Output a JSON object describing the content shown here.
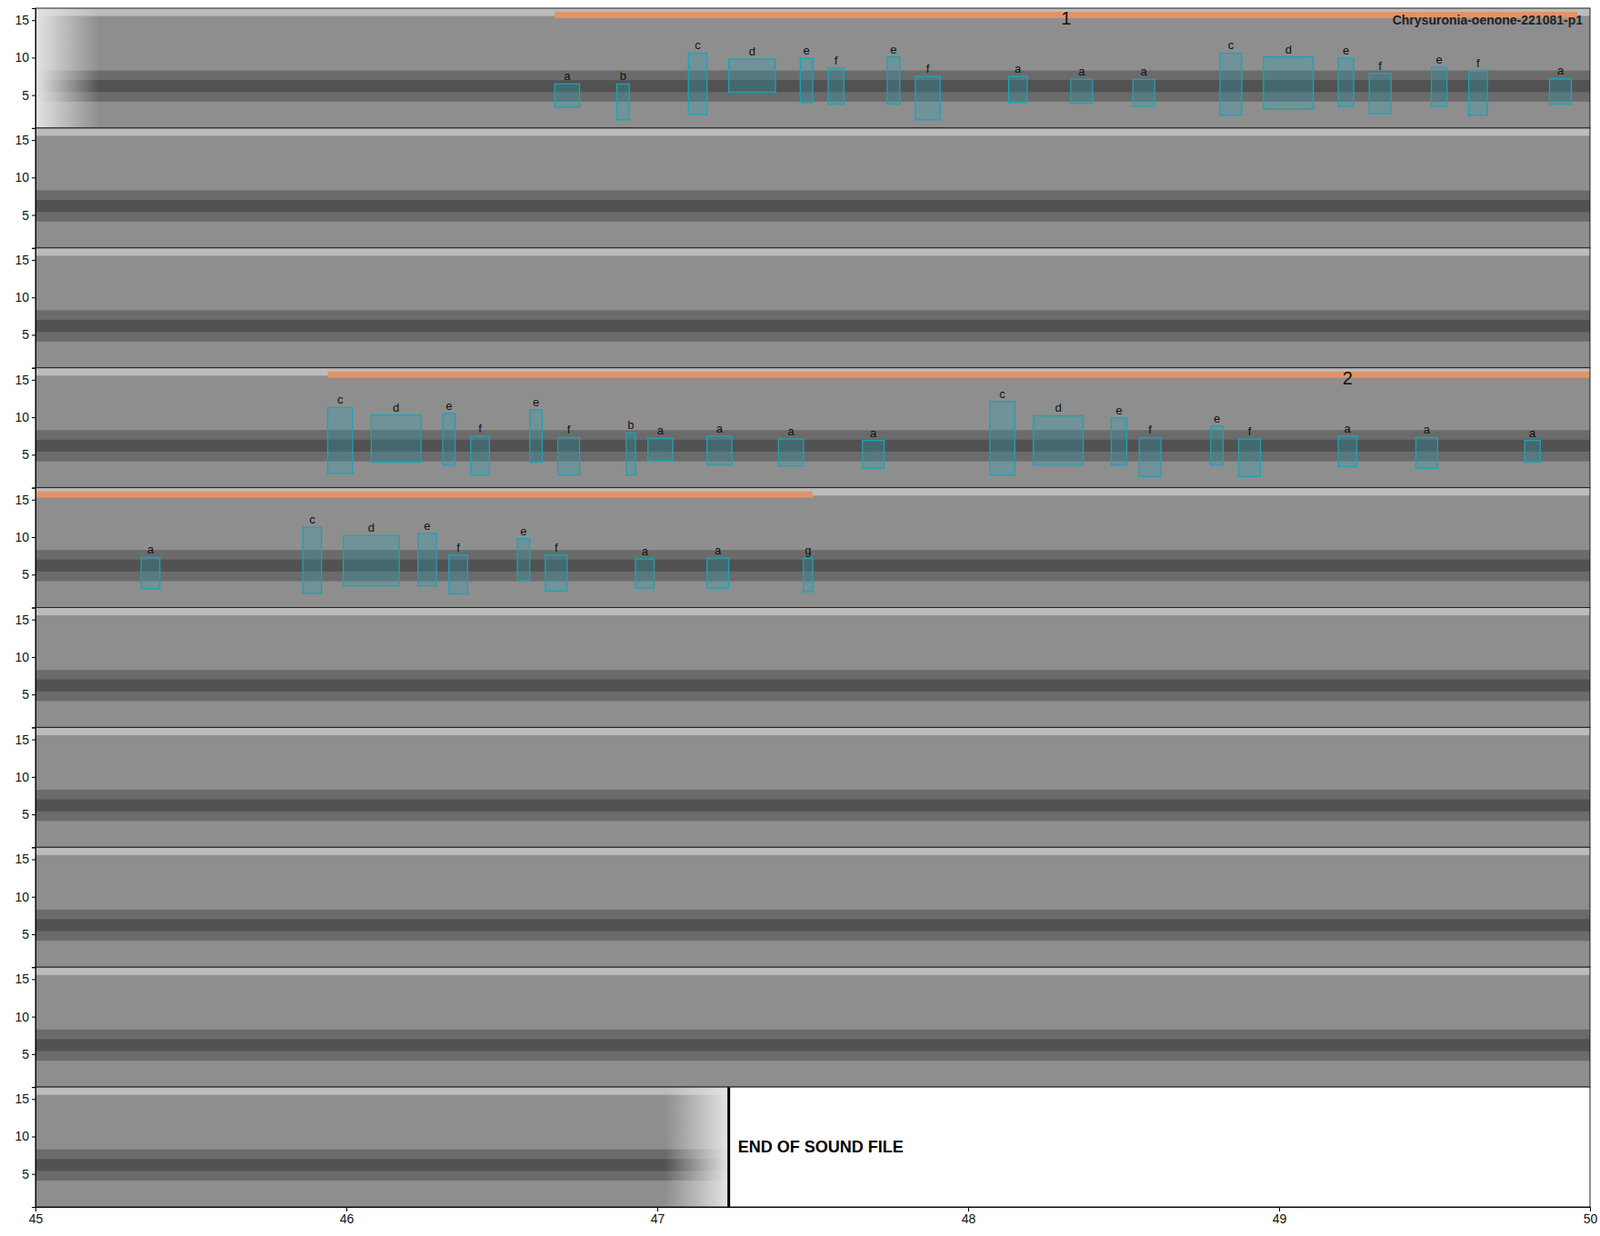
{
  "chart_data": {
    "type": "spectrogram",
    "title": "Chrysuronia-oenone-221081-p1",
    "color": "#1fa2b4",
    "ylim": [
      0.6,
      16.6
    ],
    "yticks": [
      5,
      10,
      15
    ],
    "rows": [
      {
        "xlim": [
          0,
          5
        ]
      },
      {
        "xlim": [
          5,
          10
        ]
      },
      {
        "xlim": [
          10,
          15
        ]
      },
      {
        "xlim": [
          15,
          20
        ]
      },
      {
        "xlim": [
          20,
          25
        ]
      },
      {
        "xlim": [
          25,
          30
        ]
      },
      {
        "xlim": [
          30,
          35
        ]
      },
      {
        "xlim": [
          35,
          40
        ]
      },
      {
        "xlim": [
          40,
          45
        ]
      },
      {
        "xlim": [
          45,
          50
        ],
        "xticks": [
          45,
          46,
          47,
          48,
          49,
          50
        ]
      }
    ],
    "songs": [
      {
        "label": "1",
        "start": 1.67,
        "end": 4.96
      },
      {
        "label": "2",
        "start": 15.94,
        "end": 22.5
      }
    ],
    "syllables": [
      {
        "label": "a",
        "t": [
          1.67,
          1.75
        ],
        "f": [
          3.4,
          6.5
        ]
      },
      {
        "label": "b",
        "t": [
          1.87,
          1.91
        ],
        "f": [
          1.7,
          6.5
        ]
      },
      {
        "label": "c",
        "t": [
          2.1,
          2.16
        ],
        "f": [
          2.4,
          10.6
        ]
      },
      {
        "label": "d",
        "t": [
          2.23,
          2.38
        ],
        "f": [
          5.4,
          9.8
        ]
      },
      {
        "label": "e",
        "t": [
          2.46,
          2.5
        ],
        "f": [
          4.0,
          9.9
        ]
      },
      {
        "label": "f",
        "t": [
          2.55,
          2.6
        ],
        "f": [
          3.8,
          8.6
        ]
      },
      {
        "label": "e",
        "t": [
          2.74,
          2.78
        ],
        "f": [
          3.8,
          10.1
        ]
      },
      {
        "label": "f",
        "t": [
          2.83,
          2.91
        ],
        "f": [
          1.7,
          7.5
        ]
      },
      {
        "label": "a",
        "t": [
          3.13,
          3.19
        ],
        "f": [
          4.0,
          7.5
        ]
      },
      {
        "label": "a",
        "t": [
          3.33,
          3.4
        ],
        "f": [
          3.9,
          7.1
        ]
      },
      {
        "label": "a",
        "t": [
          3.53,
          3.6
        ],
        "f": [
          3.5,
          7.1
        ]
      },
      {
        "label": "c",
        "t": [
          3.81,
          3.88
        ],
        "f": [
          2.3,
          10.6
        ]
      },
      {
        "label": "d",
        "t": [
          3.95,
          4.11
        ],
        "f": [
          3.1,
          10.1
        ]
      },
      {
        "label": "e",
        "t": [
          4.19,
          4.24
        ],
        "f": [
          3.5,
          9.9
        ]
      },
      {
        "label": "f",
        "t": [
          4.29,
          4.36
        ],
        "f": [
          2.5,
          7.9
        ]
      },
      {
        "label": "e",
        "t": [
          4.49,
          4.54
        ],
        "f": [
          3.5,
          8.7
        ]
      },
      {
        "label": "f",
        "t": [
          4.61,
          4.67
        ],
        "f": [
          2.3,
          8.2
        ]
      },
      {
        "label": "a",
        "t": [
          4.87,
          4.94
        ],
        "f": [
          3.8,
          7.2
        ]
      },
      {
        "label": "c",
        "t": [
          15.94,
          16.02
        ],
        "f": [
          2.5,
          11.3
        ]
      },
      {
        "label": "d",
        "t": [
          16.08,
          16.24
        ],
        "f": [
          4.0,
          10.3
        ]
      },
      {
        "label": "e",
        "t": [
          16.31,
          16.35
        ],
        "f": [
          3.6,
          10.5
        ]
      },
      {
        "label": "f",
        "t": [
          16.4,
          16.46
        ],
        "f": [
          2.3,
          7.5
        ]
      },
      {
        "label": "e",
        "t": [
          16.59,
          16.63
        ],
        "f": [
          4.0,
          11.0
        ]
      },
      {
        "label": "f",
        "t": [
          16.68,
          16.75
        ],
        "f": [
          2.3,
          7.3
        ]
      },
      {
        "label": "b",
        "t": [
          16.9,
          16.93
        ],
        "f": [
          2.3,
          7.9
        ]
      },
      {
        "label": "a",
        "t": [
          16.97,
          17.05
        ],
        "f": [
          4.2,
          7.2
        ]
      },
      {
        "label": "a",
        "t": [
          17.16,
          17.24
        ],
        "f": [
          3.6,
          7.5
        ]
      },
      {
        "label": "a",
        "t": [
          17.39,
          17.47
        ],
        "f": [
          3.5,
          7.1
        ]
      },
      {
        "label": "a",
        "t": [
          17.66,
          17.73
        ],
        "f": [
          3.2,
          6.9
        ]
      },
      {
        "label": "c",
        "t": [
          18.07,
          18.15
        ],
        "f": [
          2.3,
          12.1
        ]
      },
      {
        "label": "d",
        "t": [
          18.21,
          18.37
        ],
        "f": [
          3.6,
          10.2
        ]
      },
      {
        "label": "e",
        "t": [
          18.46,
          18.51
        ],
        "f": [
          3.6,
          9.9
        ]
      },
      {
        "label": "f",
        "t": [
          18.55,
          18.62
        ],
        "f": [
          2.1,
          7.3
        ]
      },
      {
        "label": "e",
        "t": [
          18.78,
          18.82
        ],
        "f": [
          3.6,
          8.8
        ]
      },
      {
        "label": "f",
        "t": [
          18.87,
          18.94
        ],
        "f": [
          2.1,
          7.1
        ]
      },
      {
        "label": "a",
        "t": [
          19.19,
          19.25
        ],
        "f": [
          3.4,
          7.5
        ]
      },
      {
        "label": "a",
        "t": [
          19.44,
          19.51
        ],
        "f": [
          3.2,
          7.3
        ]
      },
      {
        "label": "a",
        "t": [
          19.79,
          19.84
        ],
        "f": [
          4.0,
          6.9
        ]
      },
      {
        "label": "a",
        "t": [
          20.34,
          20.4
        ],
        "f": [
          3.1,
          7.3
        ]
      },
      {
        "label": "c",
        "t": [
          20.86,
          20.92
        ],
        "f": [
          2.5,
          11.3
        ]
      },
      {
        "label": "d",
        "t": [
          20.99,
          21.17
        ],
        "f": [
          3.5,
          10.2
        ]
      },
      {
        "label": "e",
        "t": [
          21.23,
          21.29
        ],
        "f": [
          3.5,
          10.5
        ]
      },
      {
        "label": "f",
        "t": [
          21.33,
          21.39
        ],
        "f": [
          2.4,
          7.6
        ]
      },
      {
        "label": "e",
        "t": [
          21.55,
          21.59
        ],
        "f": [
          4.2,
          9.8
        ]
      },
      {
        "label": "f",
        "t": [
          21.64,
          21.71
        ],
        "f": [
          2.8,
          7.6
        ]
      },
      {
        "label": "a",
        "t": [
          21.93,
          21.99
        ],
        "f": [
          3.2,
          7.1
        ]
      },
      {
        "label": "a",
        "t": [
          22.16,
          22.23
        ],
        "f": [
          3.2,
          7.2
        ]
      },
      {
        "label": "g",
        "t": [
          22.47,
          22.5
        ],
        "f": [
          2.7,
          7.2
        ]
      }
    ],
    "end_of_file": {
      "time": 47.23,
      "label": "END OF SOUND FILE"
    }
  }
}
